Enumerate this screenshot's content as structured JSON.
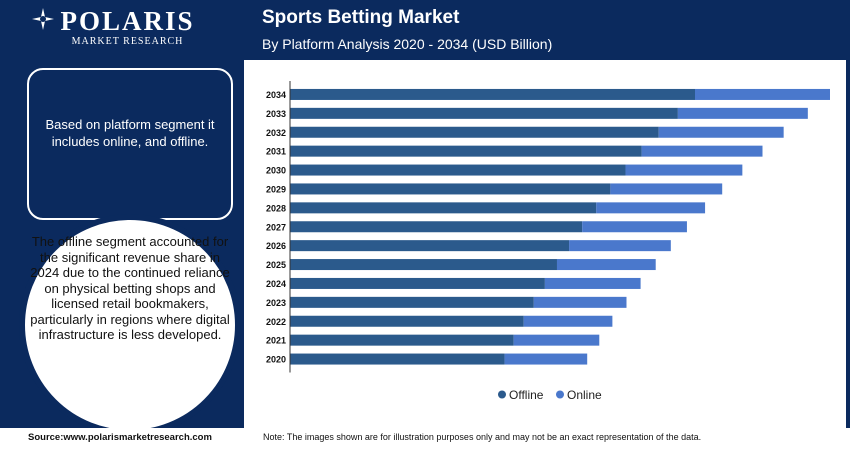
{
  "brand": {
    "name": "POLARIS",
    "tagline": "MARKET RESEARCH"
  },
  "header": {
    "title": "Sports Betting Market",
    "subtitle": "By Platform Analysis 2020 - 2034 (USD Billion)"
  },
  "sidebar": {
    "box_text": "Based on platform segment it includes online, and offline.",
    "circle_text": "The offline segment accounted for the significant revenue share in 2024 due to the continued reliance on physical betting shops and licensed retail bookmakers, particularly in regions where digital infrastructure is less developed."
  },
  "footer": {
    "source": "Source:www.polarismarketresearch.com",
    "note": "Note: The images shown are for illustration purposes only and may not be an exact representation of the data."
  },
  "colors": {
    "navy": "#0b2a5e",
    "offline": "#2b5a8c",
    "online": "#4a78cc"
  },
  "chart_data": {
    "type": "bar",
    "orientation": "horizontal",
    "stacked": true,
    "categories": [
      "2034",
      "2033",
      "2032",
      "2031",
      "2030",
      "2029",
      "2028",
      "2027",
      "2026",
      "2025",
      "2024",
      "2023",
      "2022",
      "2021",
      "2020"
    ],
    "series": [
      {
        "name": "Offline",
        "color": "#2b5a8c",
        "values": [
          402,
          385,
          366,
          349,
          333,
          318,
          304,
          290,
          277,
          265,
          253,
          242,
          232,
          222,
          213
        ]
      },
      {
        "name": "Online",
        "color": "#4a78cc",
        "values": [
          134,
          129,
          124,
          120,
          116,
          111,
          108,
          104,
          101,
          98,
          95,
          92,
          88,
          85,
          82
        ]
      }
    ],
    "legend": "bottom",
    "x_axis_visible": false,
    "grid": false
  }
}
